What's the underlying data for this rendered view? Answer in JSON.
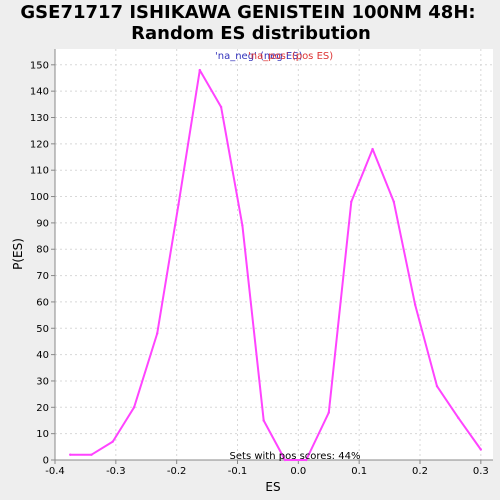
{
  "chart_data": {
    "type": "line",
    "title_line1": "GSE71717 ISHIKAWA GENISTEIN 100NM 48H:",
    "title_line2": "Random ES distribution",
    "xlabel": "ES",
    "ylabel": "P(ES)",
    "xlim": [
      -0.4,
      0.32
    ],
    "ylim": [
      0,
      156
    ],
    "xticks": [
      -0.4,
      -0.3,
      -0.2,
      -0.1,
      0.0,
      0.1,
      0.2,
      0.3
    ],
    "xtick_labels": [
      "-0.4",
      "-0.3",
      "-0.2",
      "-0.1",
      "0.0",
      "0.1",
      "0.2",
      "0.3"
    ],
    "yticks": [
      0,
      10,
      20,
      30,
      40,
      50,
      60,
      70,
      80,
      90,
      100,
      110,
      120,
      130,
      140,
      150
    ],
    "grid": true,
    "legend": {
      "placement": "top-center",
      "entries": [
        {
          "text": "'na_neg' (neg ES)",
          "color": "#3333bb"
        },
        {
          "text": "'na_pos' (pos ES)",
          "color": "#dd3333"
        }
      ]
    },
    "annotation": "Sets with pos scores: 44%",
    "series": [
      {
        "color": "#ff44ff",
        "x": [
          -0.375,
          -0.34,
          -0.305,
          -0.27,
          -0.232,
          -0.197,
          -0.162,
          -0.127,
          -0.092,
          -0.057,
          -0.022,
          0.013,
          0.05,
          0.087,
          0.122,
          0.157,
          0.192,
          0.228,
          0.263,
          0.3
        ],
        "y": [
          2,
          2,
          7,
          20,
          48,
          97,
          148,
          134,
          89,
          15,
          0,
          0,
          18,
          98,
          118,
          98,
          59,
          28,
          16,
          4
        ]
      }
    ]
  }
}
